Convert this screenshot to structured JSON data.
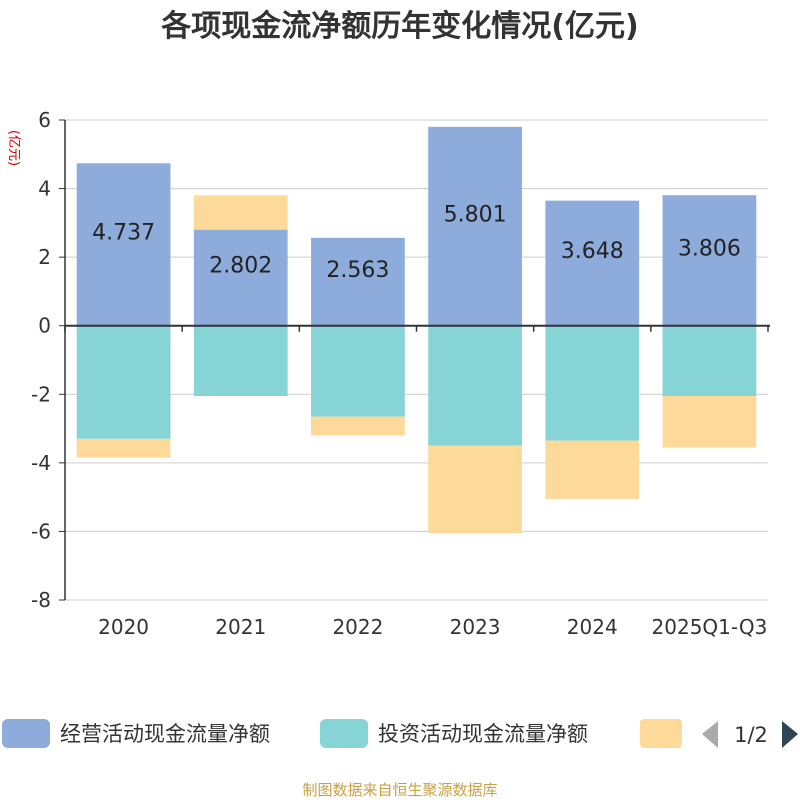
{
  "colors": {
    "operating": "#8eacdb",
    "investing": "#86d4d6",
    "financing": "#fdd99a",
    "axis": "#333333",
    "grid": "#cccccc",
    "unit": "#cc0000",
    "source": "#c9a046",
    "arrow_disabled": "#aaaaaa",
    "arrow_active": "#2f4554"
  },
  "chart_data": {
    "type": "bar",
    "stacked": true,
    "title": "各项现金流净额历年变化情况(亿元)",
    "ylabel": "(亿元)",
    "xlabel": "",
    "ylim": [
      -8,
      6
    ],
    "yticks": [
      6,
      4,
      2,
      0,
      -2,
      -4,
      -6,
      -8
    ],
    "grid": true,
    "categories": [
      "2020",
      "2021",
      "2022",
      "2023",
      "2024",
      "2025Q1-Q3"
    ],
    "series": [
      {
        "name": "经营活动现金流量净额",
        "key": "operating",
        "values": [
          4.737,
          2.802,
          2.563,
          5.801,
          3.648,
          3.806
        ],
        "labels": [
          "4.737",
          "2.802",
          "2.563",
          "5.801",
          "3.648",
          "3.806"
        ]
      },
      {
        "name": "投资活动现金流量净额",
        "key": "investing",
        "values": [
          -3.3,
          -2.05,
          -2.65,
          -3.5,
          -3.35,
          -2.05
        ]
      },
      {
        "name": "",
        "key": "financing",
        "values": [
          -0.55,
          1.0,
          -0.55,
          -2.55,
          -1.7,
          -1.5
        ]
      }
    ],
    "legend": {
      "placement": "bottom",
      "page": "1/2"
    },
    "source": "制图数据来自恒生聚源数据库"
  }
}
